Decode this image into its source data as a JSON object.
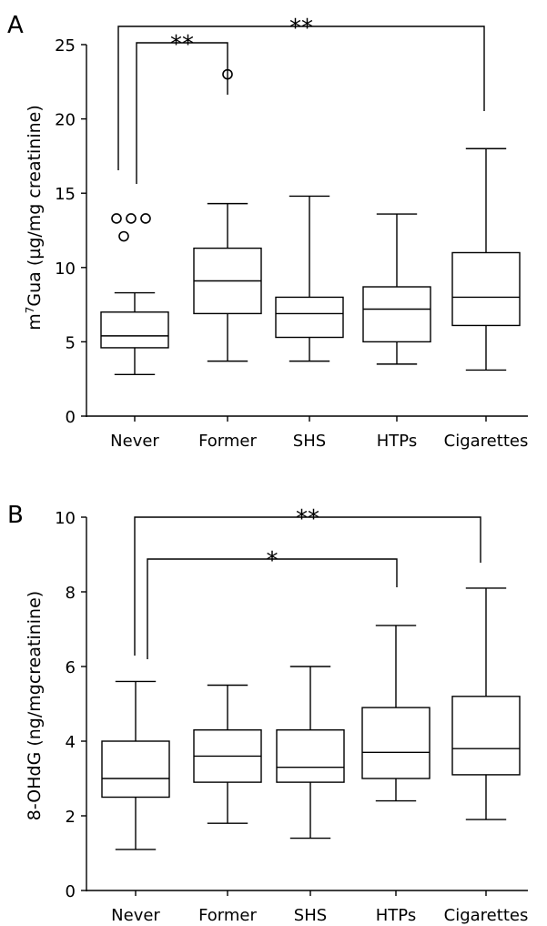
{
  "chart_data": [
    {
      "type": "box",
      "panel_label": "A",
      "categories": [
        "Never",
        "Former",
        "SHS",
        "HTPs",
        "Cigarettes"
      ],
      "ylabel": "m7Gua (µg/mg creatinine)",
      "ylabel_parts": {
        "pre": "m",
        "sup": "7",
        "post": "Gua (µg/mg creatinine)"
      },
      "ylim": [
        0,
        25
      ],
      "yticks": [
        "0",
        "5",
        "10",
        "15",
        "20",
        "25"
      ],
      "boxes": [
        {
          "min": 2.8,
          "q1": 4.6,
          "median": 5.4,
          "q3": 7.0,
          "max": 8.3,
          "outliers": [
            13.3,
            13.3,
            13.3,
            12.1
          ]
        },
        {
          "min": 3.7,
          "q1": 6.9,
          "median": 9.1,
          "q3": 11.3,
          "max": 14.3,
          "outliers": [
            23.0
          ]
        },
        {
          "min": 3.7,
          "q1": 5.3,
          "median": 6.9,
          "q3": 8.0,
          "max": 14.8,
          "outliers": []
        },
        {
          "min": 3.5,
          "q1": 5.0,
          "median": 7.2,
          "q3": 8.7,
          "max": 13.6,
          "outliers": []
        },
        {
          "min": 3.1,
          "q1": 6.1,
          "median": 8.0,
          "q3": 11.0,
          "max": 18.0,
          "outliers": []
        }
      ],
      "significance": [
        {
          "from": "Never",
          "to": "Former",
          "label": "**"
        },
        {
          "from": "Never",
          "to": "Cigarettes",
          "label": "**"
        }
      ],
      "grid": false
    },
    {
      "type": "box",
      "panel_label": "B",
      "categories": [
        "Never",
        "Former",
        "SHS",
        "HTPs",
        "Cigarettes"
      ],
      "ylabel": "8-OHdG (ng/mgcreatinine)",
      "ylim": [
        0,
        10
      ],
      "yticks": [
        "0",
        "2",
        "4",
        "6",
        "8",
        "10"
      ],
      "boxes": [
        {
          "min": 1.1,
          "q1": 2.5,
          "median": 3.0,
          "q3": 4.0,
          "max": 5.6,
          "outliers": []
        },
        {
          "min": 1.8,
          "q1": 2.9,
          "median": 3.6,
          "q3": 4.3,
          "max": 5.5,
          "outliers": []
        },
        {
          "min": 1.4,
          "q1": 2.9,
          "median": 3.3,
          "q3": 4.3,
          "max": 6.0,
          "outliers": []
        },
        {
          "min": 2.4,
          "q1": 3.0,
          "median": 3.7,
          "q3": 4.9,
          "max": 7.1,
          "outliers": []
        },
        {
          "min": 1.9,
          "q1": 3.1,
          "median": 3.8,
          "q3": 5.2,
          "max": 8.1,
          "outliers": []
        }
      ],
      "significance": [
        {
          "from": "Never",
          "to": "Cigarettes",
          "label": "**"
        },
        {
          "from": "Never",
          "to": "HTPs",
          "label": "*"
        }
      ],
      "grid": false
    }
  ]
}
